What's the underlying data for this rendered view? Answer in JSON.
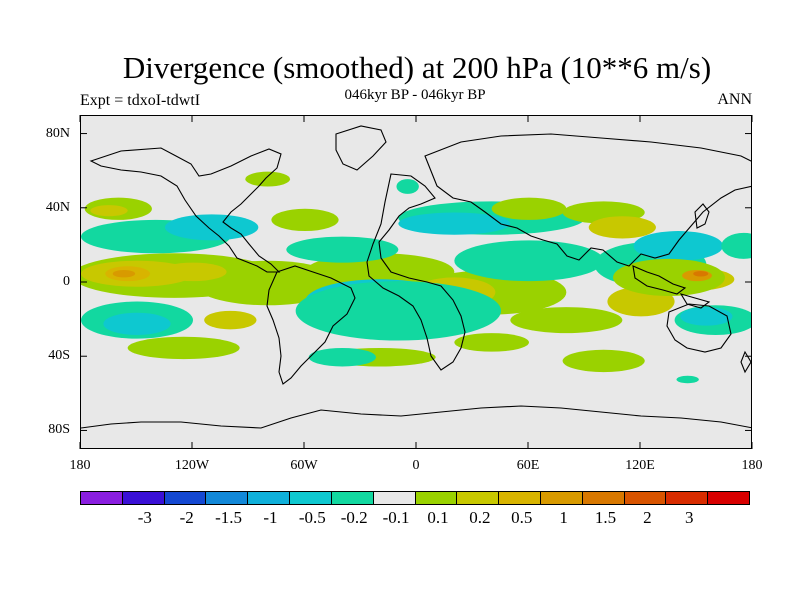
{
  "title": "Divergence (smoothed) at 200 hPa (10**6 m/s)",
  "subtitle": "046kyr BP - 046kyr BP",
  "expt_label": "Expt = tdxoI-tdwtI",
  "season": "ANN",
  "lat_ticks": [
    {
      "label": "80N",
      "value": 80
    },
    {
      "label": "40N",
      "value": 40
    },
    {
      "label": "0",
      "value": 0
    },
    {
      "label": "40S",
      "value": -40
    },
    {
      "label": "80S",
      "value": -80
    }
  ],
  "lon_ticks": [
    {
      "label": "180",
      "value": -180
    },
    {
      "label": "120W",
      "value": -120
    },
    {
      "label": "60W",
      "value": -60
    },
    {
      "label": "0",
      "value": 0
    },
    {
      "label": "60E",
      "value": 60
    },
    {
      "label": "120E",
      "value": 120
    },
    {
      "label": "180",
      "value": 180
    }
  ],
  "legend": {
    "colors": [
      "#8a1ee0",
      "#3a10d6",
      "#1448d2",
      "#1288d8",
      "#0fb0da",
      "#0ec8d0",
      "#12d8a0",
      "#e8e8e8",
      "#9ad200",
      "#c8c800",
      "#d8b400",
      "#d89a00",
      "#d87800",
      "#d85400",
      "#d82c00",
      "#d80000"
    ],
    "labels": [
      "-3",
      "-2",
      "-1.5",
      "-1",
      "-0.5",
      "-0.2",
      "-0.1",
      "0.1",
      "0.2",
      "0.5",
      "1",
      "1.5",
      "2",
      "3"
    ]
  },
  "field_colors": {
    "neg_light": "#12d8a0",
    "neg_mid": "#0ec8d0",
    "neg_strong": "#0fb0da",
    "pos_light": "#9ad200",
    "pos_mid": "#c8c800",
    "pos_strong": "#d8b400",
    "pos_max": "#d89a00",
    "pos_peak": "#d87800"
  }
}
